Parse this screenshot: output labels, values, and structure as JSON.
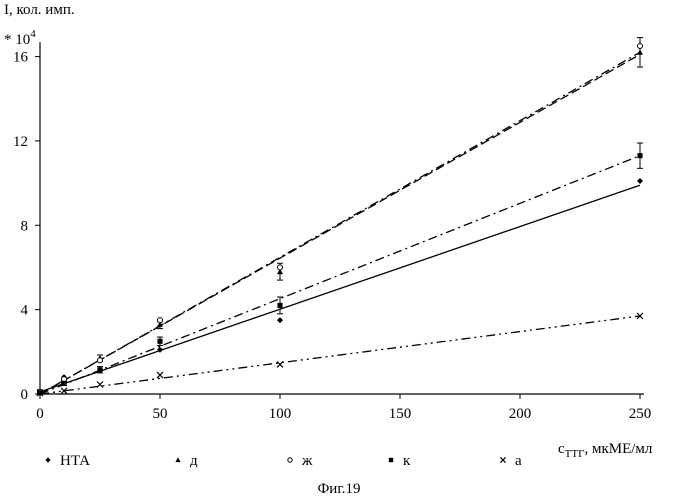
{
  "chart_data": {
    "type": "scatter",
    "ylabel": "I, кол. имп.",
    "y_multiplier": "* 10",
    "y_multiplier_exp": "4",
    "xlabel_prefix": "c",
    "xlabel_sub": "ТТГ",
    "xlabel_suffix": ", мкМЕ/мл",
    "caption": "Фиг.19",
    "xlim": [
      0,
      250
    ],
    "ylim": [
      0,
      16.5
    ],
    "x_ticks": [
      0,
      50,
      100,
      150,
      200,
      250
    ],
    "y_ticks": [
      0,
      4,
      8,
      12,
      16
    ],
    "grid": false,
    "legend_position": "bottom",
    "series": [
      {
        "name": "НТА",
        "marker": "diamond",
        "x": [
          0,
          10,
          25,
          50,
          100,
          250
        ],
        "y": [
          0.05,
          0.8,
          1.15,
          2.1,
          3.5,
          10.1
        ],
        "fit": [
          [
            0,
            0.1
          ],
          [
            250,
            9.9
          ]
        ],
        "line_style": "solid"
      },
      {
        "name": "д",
        "marker": "triangle",
        "x": [
          0,
          10,
          25,
          50,
          100,
          250
        ],
        "y": [
          0.1,
          0.6,
          1.7,
          3.3,
          5.8,
          16.2
        ],
        "errors": [
          0.1,
          0.1,
          0.15,
          0.2,
          0.4,
          0.7
        ],
        "fit": [
          [
            0,
            0.0
          ],
          [
            250,
            16.1
          ]
        ],
        "line_style": "dash"
      },
      {
        "name": "ж",
        "marker": "circle",
        "x": [
          0,
          10,
          25,
          50,
          100,
          250
        ],
        "y": [
          0.1,
          0.7,
          1.6,
          3.5,
          6.0,
          16.5
        ],
        "fit": [
          [
            0,
            0.0
          ],
          [
            250,
            16.2
          ]
        ],
        "line_style": "dash-dot"
      },
      {
        "name": "к",
        "marker": "square",
        "x": [
          0,
          10,
          25,
          50,
          100,
          250
        ],
        "y": [
          0.05,
          0.5,
          1.15,
          2.5,
          4.2,
          11.3
        ],
        "errors": [
          0.1,
          0.1,
          0.15,
          0.2,
          0.4,
          0.6
        ],
        "fit": [
          [
            0,
            0.0
          ],
          [
            250,
            11.3
          ]
        ],
        "line_style": "dash-dot"
      },
      {
        "name": "а",
        "marker": "cross",
        "x": [
          0,
          10,
          25,
          50,
          100,
          250
        ],
        "y": [
          0.05,
          0.15,
          0.45,
          0.9,
          1.4,
          3.7
        ],
        "fit": [
          [
            0,
            0.0
          ],
          [
            250,
            3.7
          ]
        ],
        "line_style": "dash-dot-dot"
      }
    ]
  }
}
